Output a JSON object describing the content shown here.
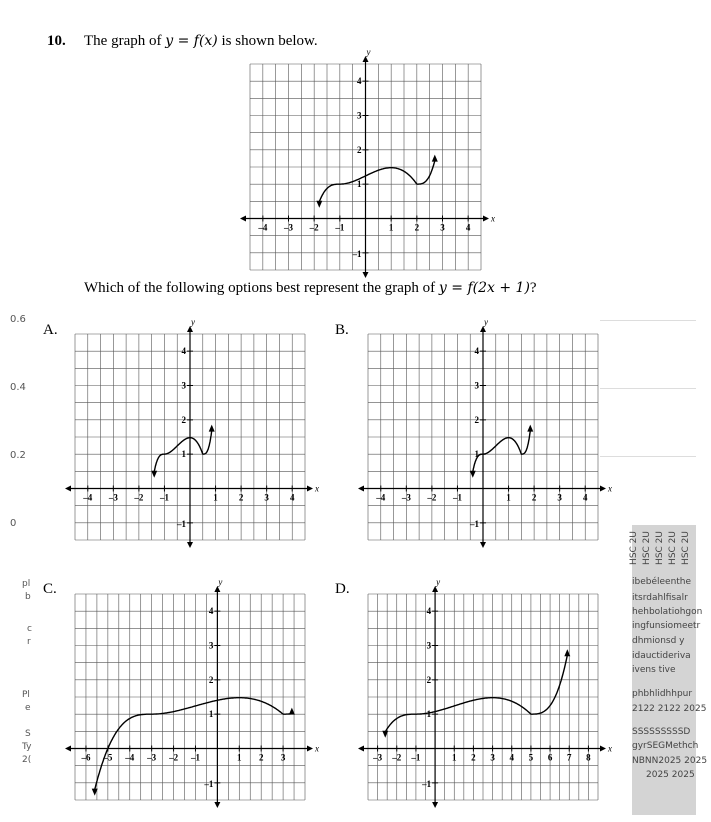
{
  "question": {
    "number": "10.",
    "stem_prefix": "The graph of ",
    "stem_math": "y = f(x)",
    "stem_suffix": " is shown below.",
    "prompt_prefix": "Which of the following options best represent the graph of ",
    "prompt_math": "y = f(2x + 1)",
    "prompt_suffix": "?"
  },
  "axis_names": {
    "x": "x",
    "y": "y"
  },
  "graphs": {
    "main": {
      "x_ticks": [
        "-4",
        "-3",
        "-2",
        "-1",
        "1",
        "2",
        "3",
        "4"
      ],
      "y_ticks": [
        "-1",
        "1",
        "2",
        "3",
        "4"
      ]
    },
    "A": {
      "label": "A.",
      "x_ticks": [
        "-4",
        "-3",
        "-2",
        "-1",
        "1",
        "2",
        "3",
        "4"
      ],
      "y_ticks": [
        "-1",
        "1",
        "2",
        "3",
        "4"
      ]
    },
    "B": {
      "label": "B.",
      "x_ticks": [
        "-4",
        "-3",
        "-2",
        "-1",
        "1",
        "2",
        "3",
        "4"
      ],
      "y_ticks": [
        "-1",
        "1",
        "2",
        "3",
        "4"
      ]
    },
    "C": {
      "label": "C.",
      "x_ticks": [
        "-6",
        "-5",
        "-4",
        "-3",
        "-2",
        "-1",
        "1",
        "2",
        "3"
      ],
      "y_ticks": [
        "-1",
        "1",
        "2",
        "3",
        "4"
      ]
    },
    "D": {
      "label": "D.",
      "x_ticks": [
        "-3",
        "-2",
        "-1",
        "1",
        "2",
        "3",
        "4",
        "5",
        "6",
        "7",
        "8"
      ],
      "y_ticks": [
        "-1",
        "1",
        "2",
        "3",
        "4"
      ]
    }
  },
  "background_axis_labels": [
    "0.6",
    "0.4",
    "0.2",
    "0"
  ],
  "side_panel": {
    "header": [
      "HSC 2U",
      "HSC 2U",
      "HSC 2U",
      "HSC 2U",
      "HSC 2U"
    ],
    "lines": [
      "ibebéleenthe",
      "itsrdahlfisalr",
      "hehbolatiohgon",
      "ingfunsiomeetr",
      "dhmionsd y",
      "idauctideriva",
      "ivens tive",
      "phbhlidhhpur",
      "2122 2122 2025",
      "SSSSSSSSSD",
      "gyrSEGMethch",
      "NBNN2025 2025",
      "2025 2025"
    ]
  },
  "left_fragments": [
    "pl",
    "b",
    "c",
    "r",
    "Pl",
    "e",
    "S",
    "Ty",
    "2("
  ]
}
